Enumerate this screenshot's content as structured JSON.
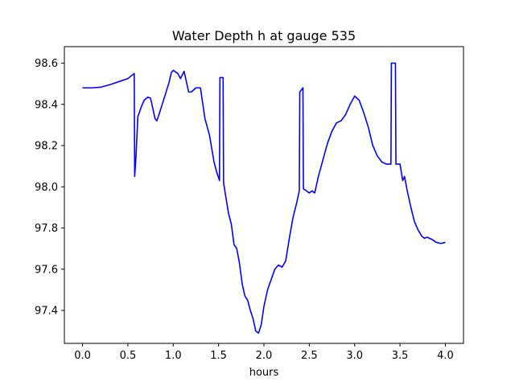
{
  "chart_data": {
    "type": "line",
    "title": "Water Depth h at gauge 535",
    "xlabel": "hours",
    "ylabel": "",
    "xlim": [
      -0.2,
      4.2
    ],
    "ylim": [
      97.24,
      98.68
    ],
    "grid": false,
    "x_ticks": [
      "0.0",
      "0.5",
      "1.0",
      "1.5",
      "2.0",
      "2.5",
      "3.0",
      "3.5",
      "4.0"
    ],
    "y_ticks": [
      "97.4",
      "97.6",
      "97.8",
      "98.0",
      "98.2",
      "98.4",
      "98.6"
    ],
    "series": [
      {
        "color": "#0000ff",
        "points": [
          [
            0.0,
            98.48
          ],
          [
            0.1,
            98.48
          ],
          [
            0.2,
            98.483
          ],
          [
            0.3,
            98.495
          ],
          [
            0.4,
            98.51
          ],
          [
            0.5,
            98.525
          ],
          [
            0.57,
            98.55
          ],
          [
            0.575,
            98.05
          ],
          [
            0.59,
            98.15
          ],
          [
            0.61,
            98.34
          ],
          [
            0.65,
            98.39
          ],
          [
            0.68,
            98.42
          ],
          [
            0.72,
            98.435
          ],
          [
            0.75,
            98.43
          ],
          [
            0.77,
            98.39
          ],
          [
            0.8,
            98.33
          ],
          [
            0.82,
            98.32
          ],
          [
            0.85,
            98.36
          ],
          [
            0.9,
            98.43
          ],
          [
            0.95,
            98.5
          ],
          [
            0.98,
            98.555
          ],
          [
            1.0,
            98.565
          ],
          [
            1.05,
            98.55
          ],
          [
            1.08,
            98.525
          ],
          [
            1.12,
            98.56
          ],
          [
            1.14,
            98.52
          ],
          [
            1.17,
            98.46
          ],
          [
            1.2,
            98.46
          ],
          [
            1.25,
            98.48
          ],
          [
            1.3,
            98.48
          ],
          [
            1.35,
            98.33
          ],
          [
            1.4,
            98.25
          ],
          [
            1.45,
            98.12
          ],
          [
            1.48,
            98.07
          ],
          [
            1.51,
            98.03
          ],
          [
            1.515,
            98.53
          ],
          [
            1.55,
            98.53
          ],
          [
            1.555,
            98.02
          ],
          [
            1.58,
            97.95
          ],
          [
            1.61,
            97.87
          ],
          [
            1.64,
            97.82
          ],
          [
            1.67,
            97.72
          ],
          [
            1.7,
            97.7
          ],
          [
            1.73,
            97.63
          ],
          [
            1.76,
            97.53
          ],
          [
            1.79,
            97.47
          ],
          [
            1.82,
            97.45
          ],
          [
            1.85,
            97.4
          ],
          [
            1.88,
            97.36
          ],
          [
            1.91,
            97.3
          ],
          [
            1.94,
            97.29
          ],
          [
            1.97,
            97.33
          ],
          [
            2.0,
            97.42
          ],
          [
            2.04,
            97.5
          ],
          [
            2.08,
            97.55
          ],
          [
            2.12,
            97.6
          ],
          [
            2.16,
            97.62
          ],
          [
            2.2,
            97.61
          ],
          [
            2.24,
            97.64
          ],
          [
            2.28,
            97.75
          ],
          [
            2.32,
            97.85
          ],
          [
            2.36,
            97.92
          ],
          [
            2.39,
            97.98
          ],
          [
            2.395,
            98.46
          ],
          [
            2.43,
            98.48
          ],
          [
            2.435,
            97.99
          ],
          [
            2.47,
            97.98
          ],
          [
            2.5,
            97.97
          ],
          [
            2.53,
            97.98
          ],
          [
            2.56,
            97.97
          ],
          [
            2.6,
            98.05
          ],
          [
            2.65,
            98.13
          ],
          [
            2.7,
            98.21
          ],
          [
            2.75,
            98.27
          ],
          [
            2.8,
            98.31
          ],
          [
            2.85,
            98.32
          ],
          [
            2.9,
            98.35
          ],
          [
            2.95,
            98.4
          ],
          [
            3.0,
            98.44
          ],
          [
            3.05,
            98.42
          ],
          [
            3.1,
            98.36
          ],
          [
            3.15,
            98.29
          ],
          [
            3.2,
            98.2
          ],
          [
            3.25,
            98.15
          ],
          [
            3.3,
            98.12
          ],
          [
            3.35,
            98.11
          ],
          [
            3.4,
            98.11
          ],
          [
            3.405,
            98.6
          ],
          [
            3.45,
            98.6
          ],
          [
            3.455,
            98.11
          ],
          [
            3.5,
            98.11
          ],
          [
            3.53,
            98.03
          ],
          [
            3.55,
            98.05
          ],
          [
            3.58,
            97.98
          ],
          [
            3.62,
            97.9
          ],
          [
            3.66,
            97.83
          ],
          [
            3.7,
            97.79
          ],
          [
            3.74,
            97.76
          ],
          [
            3.77,
            97.75
          ],
          [
            3.8,
            97.755
          ],
          [
            3.85,
            97.745
          ],
          [
            3.9,
            97.73
          ],
          [
            3.95,
            97.725
          ],
          [
            4.0,
            97.73
          ]
        ]
      }
    ]
  }
}
